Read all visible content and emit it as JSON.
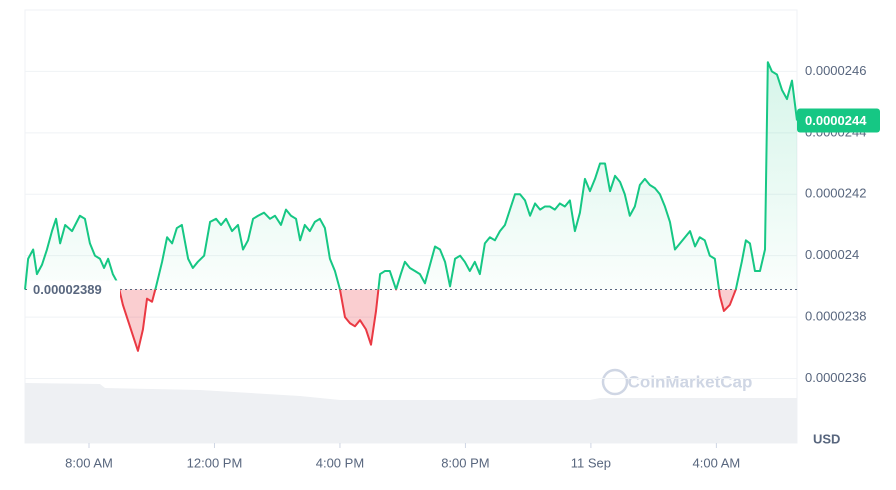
{
  "chart_data": {
    "type": "line",
    "x": [
      5.96,
      6.06,
      6.22,
      6.34,
      6.5,
      6.66,
      6.82,
      6.95,
      7.08,
      7.24,
      7.46,
      7.71,
      7.87,
      8.03,
      8.19,
      8.35,
      8.48,
      8.61,
      8.76,
      8.92,
      9.08,
      9.24,
      9.4,
      9.56,
      9.72,
      9.85,
      10.01,
      10.14,
      10.33,
      10.49,
      10.65,
      10.8,
      10.96,
      11.16,
      11.31,
      11.47,
      11.67,
      11.86,
      12.05,
      12.21,
      12.37,
      12.56,
      12.75,
      12.91,
      13.07,
      13.23,
      13.39,
      13.58,
      13.77,
      13.93,
      14.12,
      14.28,
      14.44,
      14.6,
      14.73,
      14.88,
      15.04,
      15.2,
      15.36,
      15.52,
      15.68,
      15.84,
      16.0,
      16.16,
      16.32,
      16.48,
      16.64,
      16.83,
      16.99,
      17.15,
      17.28,
      17.43,
      17.59,
      17.79,
      17.94,
      18.07,
      18.23,
      18.39,
      18.55,
      18.71,
      18.87,
      19.03,
      19.19,
      19.35,
      19.51,
      19.67,
      19.83,
      19.98,
      20.14,
      20.3,
      20.46,
      20.62,
      20.78,
      20.94,
      21.1,
      21.26,
      21.42,
      21.58,
      21.74,
      21.9,
      22.06,
      22.22,
      22.38,
      22.53,
      22.69,
      22.85,
      23.01,
      23.17,
      23.33,
      23.49,
      23.65,
      23.81,
      23.97,
      24.13,
      24.29,
      24.45,
      24.61,
      24.77,
      24.93,
      25.08,
      25.24,
      25.4,
      25.56,
      25.72,
      25.88,
      26.04,
      26.2,
      26.36,
      26.52,
      26.68,
      26.84,
      27.0,
      27.16,
      27.32,
      27.47,
      27.63,
      27.79,
      27.95,
      28.11,
      28.24,
      28.43,
      28.62,
      28.81,
      28.94,
      29.07,
      29.23,
      29.39,
      29.55,
      29.64,
      29.77,
      29.93,
      30.09,
      30.25,
      30.41,
      30.57
    ],
    "series": [
      {
        "color": "#16c784",
        "down_color": "#ea3943",
        "values": [
          2.389e-05,
          2.399e-05,
          2.402e-05,
          2.394e-05,
          2.397e-05,
          2.402e-05,
          2.408e-05,
          2.412e-05,
          2.404e-05,
          2.41e-05,
          2.408e-05,
          2.413e-05,
          2.412e-05,
          2.404e-05,
          2.4e-05,
          2.399e-05,
          2.396e-05,
          2.399e-05,
          2.394e-05,
          2.391e-05,
          2.384e-05,
          2.379e-05,
          2.374e-05,
          2.369e-05,
          2.376e-05,
          2.386e-05,
          2.385e-05,
          2.39e-05,
          2.398e-05,
          2.406e-05,
          2.404e-05,
          2.409e-05,
          2.41e-05,
          2.399e-05,
          2.396e-05,
          2.398e-05,
          2.4e-05,
          2.411e-05,
          2.412e-05,
          2.41e-05,
          2.412e-05,
          2.408e-05,
          2.41e-05,
          2.402e-05,
          2.405e-05,
          2.412e-05,
          2.413e-05,
          2.414e-05,
          2.412e-05,
          2.413e-05,
          2.41e-05,
          2.415e-05,
          2.413e-05,
          2.412e-05,
          2.405e-05,
          2.41e-05,
          2.408e-05,
          2.411e-05,
          2.412e-05,
          2.409e-05,
          2.399e-05,
          2.395e-05,
          2.389e-05,
          2.38e-05,
          2.378e-05,
          2.377e-05,
          2.379e-05,
          2.376e-05,
          2.371e-05,
          2.382e-05,
          2.394e-05,
          2.395e-05,
          2.395e-05,
          2.389e-05,
          2.394e-05,
          2.398e-05,
          2.396e-05,
          2.395e-05,
          2.394e-05,
          2.391e-05,
          2.397e-05,
          2.403e-05,
          2.402e-05,
          2.398e-05,
          2.39e-05,
          2.399e-05,
          2.4e-05,
          2.398e-05,
          2.395e-05,
          2.398e-05,
          2.394e-05,
          2.404e-05,
          2.406e-05,
          2.405e-05,
          2.408e-05,
          2.41e-05,
          2.415e-05,
          2.42e-05,
          2.42e-05,
          2.418e-05,
          2.413e-05,
          2.417e-05,
          2.415e-05,
          2.416e-05,
          2.416e-05,
          2.415e-05,
          2.417e-05,
          2.416e-05,
          2.418e-05,
          2.408e-05,
          2.414e-05,
          2.425e-05,
          2.421e-05,
          2.425e-05,
          2.43e-05,
          2.43e-05,
          2.421e-05,
          2.426e-05,
          2.424e-05,
          2.42e-05,
          2.413e-05,
          2.416e-05,
          2.423e-05,
          2.425e-05,
          2.423e-05,
          2.422e-05,
          2.42e-05,
          2.416e-05,
          2.411e-05,
          2.402e-05,
          2.404e-05,
          2.406e-05,
          2.408e-05,
          2.403e-05,
          2.406e-05,
          2.405e-05,
          2.4e-05,
          2.399e-05,
          2.387e-05,
          2.382e-05,
          2.384e-05,
          2.389e-05,
          2.398e-05,
          2.405e-05,
          2.404e-05,
          2.395e-05,
          2.395e-05,
          2.402e-05,
          2.463e-05,
          2.46e-05,
          2.459e-05,
          2.454e-05,
          2.451e-05,
          2.457e-05,
          2.444e-05
        ]
      }
    ],
    "baseline": 2.389e-05,
    "last_price_label": "0.0000244",
    "xlim": [
      5.96,
      30.57
    ],
    "xticks": [
      {
        "value": 8,
        "label": "8:00 AM"
      },
      {
        "value": 12,
        "label": "12:00 PM"
      },
      {
        "value": 16,
        "label": "4:00 PM"
      },
      {
        "value": 20,
        "label": "8:00 PM"
      },
      {
        "value": 24,
        "label": "11 Sep"
      },
      {
        "value": 28,
        "label": "4:00 AM"
      }
    ],
    "ylim": [
      2.339e-05,
      2.48e-05
    ],
    "yticks": [
      2.36e-05,
      2.38e-05,
      2.4e-05,
      2.42e-05,
      2.44e-05,
      2.46e-05
    ],
    "y_unit": "USD",
    "watermark": "CoinMarketCap",
    "grid": true
  }
}
